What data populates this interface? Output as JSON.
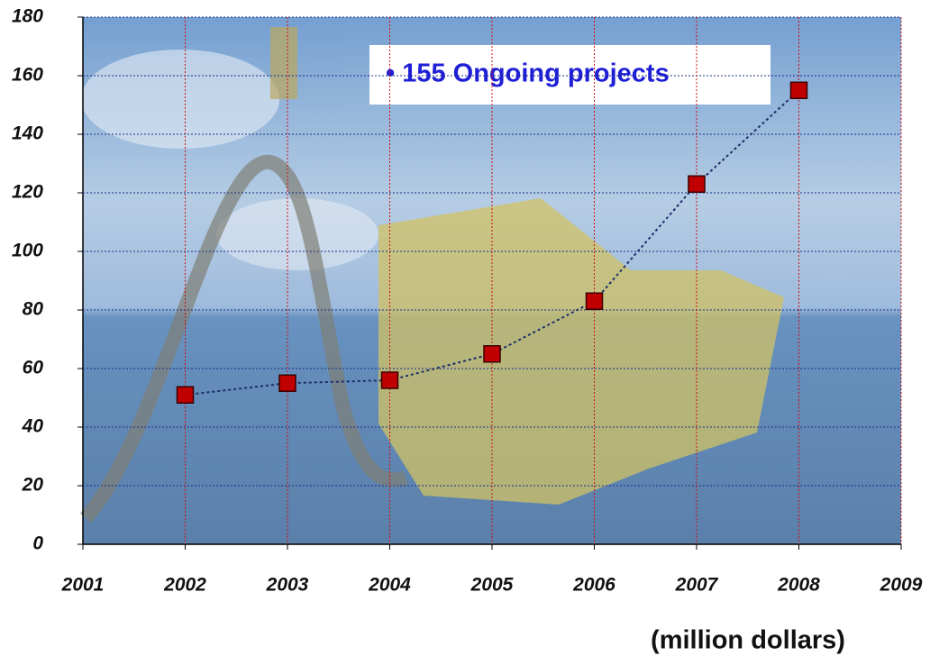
{
  "chart_data": {
    "type": "line",
    "annotation": "• 155 Ongoing projects",
    "unit_label": "(million dollars)",
    "x": [
      2002,
      2003,
      2004,
      2005,
      2006,
      2007,
      2008
    ],
    "series": [
      {
        "color": "#c00000",
        "values": [
          51,
          55,
          56,
          65,
          83,
          123,
          155
        ]
      }
    ],
    "xlim": [
      2001,
      2009
    ],
    "xticks": [
      2001,
      2002,
      2003,
      2004,
      2005,
      2006,
      2007,
      2008,
      2009
    ],
    "ylim": [
      0,
      180
    ],
    "yticks": [
      0,
      20,
      40,
      60,
      80,
      100,
      120,
      140,
      160,
      180
    ],
    "grid": true
  }
}
